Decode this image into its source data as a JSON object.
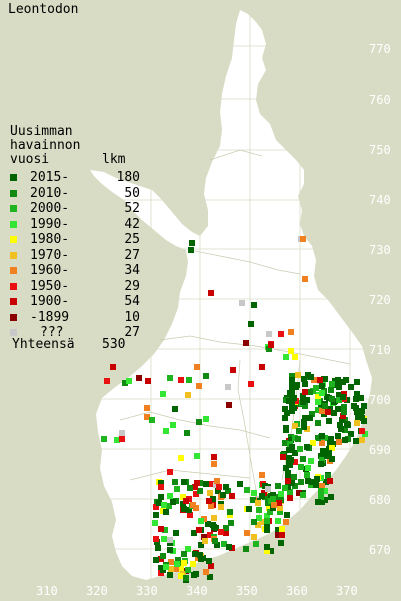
{
  "title": "Leontodon",
  "legend_header": [
    "Uusimman",
    "havainnon",
    "vuosi"
  ],
  "legend_count_header": "lkm",
  "legend": [
    {
      "label": "2015-",
      "count": "180",
      "color": "#006400"
    },
    {
      "label": "2010-",
      "count": "50",
      "color": "#118a11"
    },
    {
      "label": "2000-",
      "count": "52",
      "color": "#1fb51f"
    },
    {
      "label": "1990-",
      "count": "42",
      "color": "#33e633"
    },
    {
      "label": "1980-",
      "count": "25",
      "color": "#ffff00"
    },
    {
      "label": "1970-",
      "count": "27",
      "color": "#f0c020"
    },
    {
      "label": "1960-",
      "count": "34",
      "color": "#f08020"
    },
    {
      "label": "1950-",
      "count": "29",
      "color": "#e81010"
    },
    {
      "label": "1900-",
      "count": "54",
      "color": "#c80000"
    },
    {
      "label": "-1899",
      "count": "10",
      "color": "#8b0000"
    },
    {
      "label": "???",
      "count": "27",
      "color": "#c8c8c8"
    }
  ],
  "total_label": "Yhteensä",
  "total_count": "530",
  "y_axis_labels": [
    "770",
    "760",
    "750",
    "740",
    "730",
    "720",
    "710",
    "700",
    "690",
    "680",
    "670"
  ],
  "x_axis_labels": [
    "310",
    "320",
    "330",
    "340",
    "350",
    "360",
    "370"
  ],
  "colors": {
    "background": "#d8dcc4",
    "land": "#ffffff",
    "grid": "#d8dcc4",
    "axis_label": "#ffffff"
  }
}
